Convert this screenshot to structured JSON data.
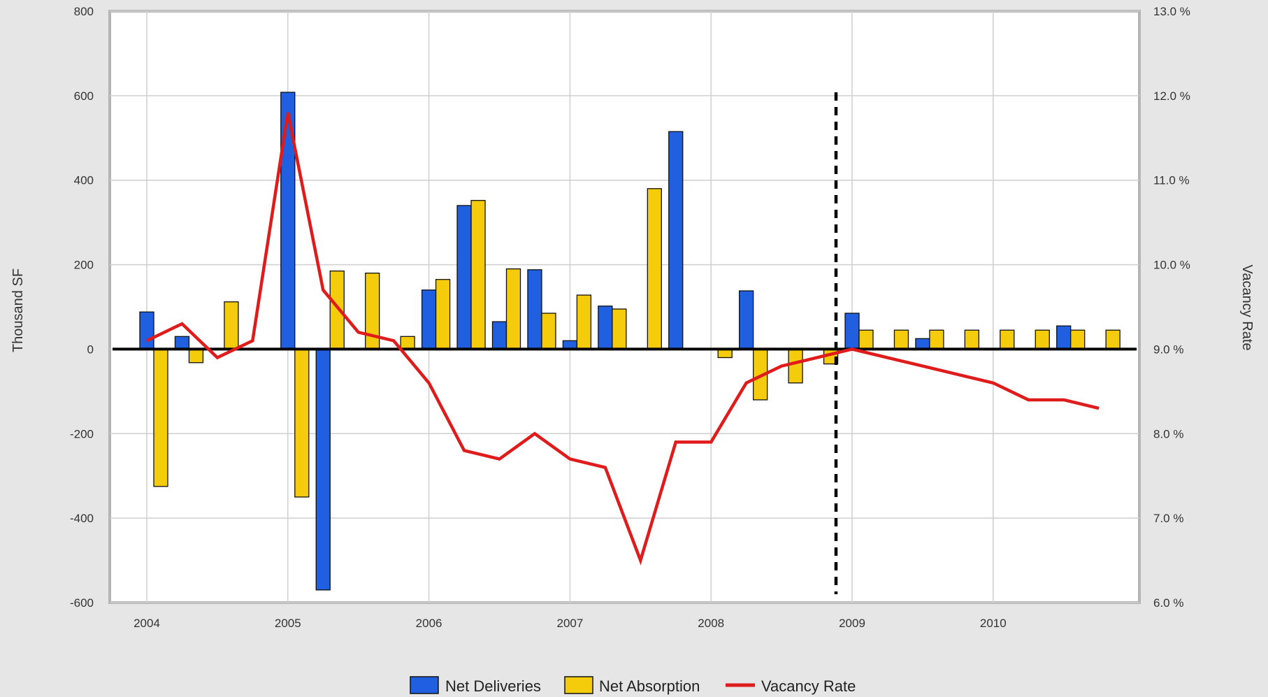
{
  "chart_data": {
    "type": "bar",
    "title": "",
    "xlabel": "",
    "ylabel": "Thousand SF",
    "y2label": "Vacancy Rate",
    "ylim": [
      -600,
      800
    ],
    "y2lim": [
      6.0,
      13.0
    ],
    "yticks": [
      "800",
      "600",
      "400",
      "200",
      "0",
      "-200",
      "-400",
      "-600"
    ],
    "y2ticks": [
      "13.0 %",
      "12.0 %",
      "11.0 %",
      "10.0 %",
      "9.0 %",
      "8.0 %",
      "7.0 %",
      "6.0 %"
    ],
    "xticks": [
      "2004",
      "2005",
      "2006",
      "2007",
      "2008",
      "2009",
      "2010"
    ],
    "grid": true,
    "legend_position": "bottom",
    "forecast_marker": "2009Q1",
    "categories": [
      "2004Q1",
      "2004Q2",
      "2004Q3",
      "2004Q4",
      "2005Q1",
      "2005Q2",
      "2005Q3",
      "2005Q4",
      "2006Q1",
      "2006Q2",
      "2006Q3",
      "2006Q4",
      "2007Q1",
      "2007Q2",
      "2007Q3",
      "2007Q4",
      "2008Q1",
      "2008Q2",
      "2008Q3",
      "2008Q4",
      "2009Q1",
      "2009Q2",
      "2009Q3",
      "2009Q4",
      "2010Q1",
      "2010Q2",
      "2010Q3",
      "2010Q4"
    ],
    "series": [
      {
        "name": "Net Deliveries",
        "kind": "bar",
        "color": "#1f5fe0",
        "values": [
          88,
          30,
          0,
          0,
          608,
          -570,
          0,
          0,
          140,
          340,
          65,
          188,
          20,
          102,
          0,
          515,
          0,
          138,
          0,
          0,
          85,
          0,
          25,
          0,
          0,
          0,
          55,
          0
        ]
      },
      {
        "name": "Net Absorption",
        "kind": "bar",
        "color": "#f5cc0c",
        "values": [
          -325,
          -32,
          112,
          0,
          -350,
          185,
          180,
          30,
          165,
          352,
          190,
          85,
          128,
          95,
          380,
          0,
          -20,
          -120,
          -80,
          -35,
          45,
          45,
          45,
          45,
          45,
          45,
          45,
          45
        ]
      },
      {
        "name": "Vacancy Rate",
        "kind": "line",
        "axis": "right",
        "color": "#e01b1b",
        "values": [
          9.1,
          9.3,
          8.9,
          9.1,
          11.8,
          9.7,
          9.2,
          9.1,
          8.6,
          7.8,
          7.7,
          8.0,
          7.7,
          7.6,
          6.5,
          7.9,
          7.9,
          8.6,
          8.8,
          8.9,
          9.0,
          8.9,
          8.8,
          8.7,
          8.6,
          8.4,
          8.4,
          8.3
        ]
      }
    ]
  }
}
